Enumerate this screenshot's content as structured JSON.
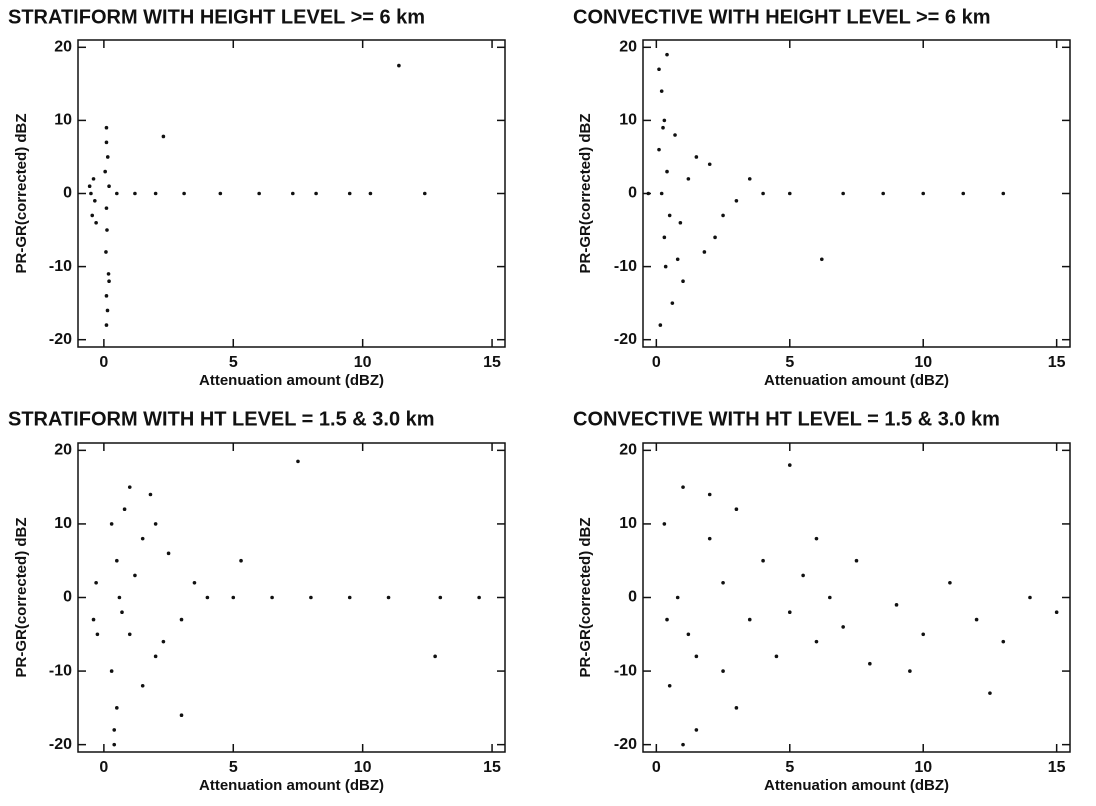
{
  "chart_data": [
    {
      "type": "scatter",
      "title": "STRATIFORM WITH HEIGHT LEVEL >= 6 km",
      "x_label": "Attenuation amount (dBZ)",
      "y_label": "PR-GR(corrected) dBZ",
      "xlim": [
        -1,
        15.5
      ],
      "ylim": [
        -21,
        21
      ],
      "xticks": [
        0,
        5,
        10,
        15
      ],
      "yticks": [
        -20,
        -10,
        0,
        10,
        20
      ],
      "color": "#111111",
      "x": [
        0.1,
        0.1,
        0.15,
        0.05,
        0.2,
        0.1,
        0.12,
        0.08,
        0.18,
        0.1,
        0.14,
        -0.4,
        -0.5,
        -0.35,
        -0.45,
        -0.3,
        -0.55,
        0.5,
        1.2,
        2.0,
        3.1,
        4.5,
        6.0,
        7.3,
        8.2,
        9.5,
        10.3,
        12.4,
        2.3,
        11.4,
        0.1,
        0.2
      ],
      "values": [
        9,
        7,
        5,
        3,
        1,
        -2,
        -5,
        -8,
        -11,
        -14,
        -16,
        2,
        0,
        -1,
        -3,
        -4,
        1,
        0,
        0,
        0,
        0,
        0,
        0,
        0,
        0,
        0,
        0,
        0,
        7.8,
        17.5,
        -18,
        -12
      ]
    },
    {
      "type": "scatter",
      "title": "CONVECTIVE WITH HEIGHT LEVEL >= 6 km",
      "x_label": "Attenuation amount (dBZ)",
      "y_label": "PR-GR(corrected) dBZ",
      "xlim": [
        -0.5,
        15.5
      ],
      "ylim": [
        -21,
        21
      ],
      "xticks": [
        0,
        5,
        10,
        15
      ],
      "yticks": [
        -20,
        -10,
        0,
        10,
        20
      ],
      "color": "#111111",
      "x": [
        0.1,
        0.2,
        0.3,
        0.1,
        0.4,
        0.2,
        0.5,
        0.3,
        0.8,
        1.0,
        1.2,
        0.6,
        1.5,
        2.0,
        2.5,
        3.0,
        1.8,
        2.2,
        0.15,
        0.25,
        0.35,
        0.7,
        0.9,
        4.0,
        5.0,
        6.2,
        7.0,
        8.5,
        10.0,
        11.5,
        13.0,
        0.4,
        -0.3,
        3.5
      ],
      "values": [
        17,
        14,
        10,
        6,
        3,
        0,
        -3,
        -6,
        -9,
        -12,
        2,
        -15,
        5,
        4,
        -3,
        -1,
        -8,
        -6,
        -18,
        9,
        -10,
        8,
        -4,
        0,
        0,
        -9,
        0,
        0,
        0,
        0,
        0,
        19,
        0,
        2
      ]
    },
    {
      "type": "scatter",
      "title": "STRATIFORM WITH HT LEVEL = 1.5 & 3.0 km",
      "x_label": "Attenuation amount (dBZ)",
      "y_label": "PR-GR(corrected) dBZ",
      "xlim": [
        -1,
        15.5
      ],
      "ylim": [
        -21,
        21
      ],
      "xticks": [
        0,
        5,
        10,
        15
      ],
      "yticks": [
        -20,
        -10,
        0,
        10,
        20
      ],
      "color": "#111111",
      "x": [
        0.3,
        0.3,
        0.4,
        0.5,
        0.5,
        0.6,
        0.8,
        1.0,
        1.0,
        1.5,
        1.5,
        2.0,
        2.0,
        2.5,
        3.0,
        3.5,
        4.0,
        0.4,
        0.7,
        1.2,
        1.8,
        2.3,
        -0.3,
        -0.4,
        -0.25,
        5.0,
        6.5,
        8.0,
        9.5,
        11.0,
        13.0,
        14.5,
        7.5,
        12.8,
        3.0,
        5.3
      ],
      "values": [
        10,
        -10,
        -18,
        5,
        -15,
        0,
        12,
        -5,
        15,
        8,
        -12,
        10,
        -8,
        6,
        -3,
        2,
        0,
        -20,
        -2,
        3,
        14,
        -6,
        2,
        -3,
        -5,
        0,
        0,
        0,
        0,
        0,
        0,
        0,
        18.5,
        -8,
        -16,
        5
      ]
    },
    {
      "type": "scatter",
      "title": "CONVECTIVE WITH HT LEVEL = 1.5 & 3.0 km",
      "x_label": "Attenuation amount (dBZ)",
      "y_label": "PR-GR(corrected) dBZ",
      "xlim": [
        -0.5,
        15.5
      ],
      "ylim": [
        -21,
        21
      ],
      "xticks": [
        0,
        5,
        10,
        15
      ],
      "yticks": [
        -20,
        -10,
        0,
        10,
        20
      ],
      "color": "#111111",
      "x": [
        0.3,
        0.5,
        0.8,
        1.0,
        1.2,
        1.5,
        2.0,
        2.5,
        3.0,
        3.5,
        4.0,
        4.5,
        5.0,
        5.5,
        6.0,
        6.5,
        7.0,
        7.5,
        8.0,
        9.0,
        10.0,
        11.0,
        12.0,
        13.0,
        14.0,
        15.0,
        1.0,
        2.0,
        3.0,
        0.4,
        1.5,
        2.5,
        6.0,
        9.5,
        5.0,
        12.5
      ],
      "values": [
        10,
        -12,
        0,
        15,
        -5,
        -18,
        8,
        -10,
        12,
        -3,
        5,
        -8,
        -2,
        3,
        -6,
        0,
        -4,
        5,
        -9,
        -1,
        -5,
        2,
        -3,
        -6,
        0,
        -2,
        -20,
        14,
        -15,
        -3,
        -8,
        2,
        8,
        -10,
        18,
        -13
      ]
    }
  ]
}
